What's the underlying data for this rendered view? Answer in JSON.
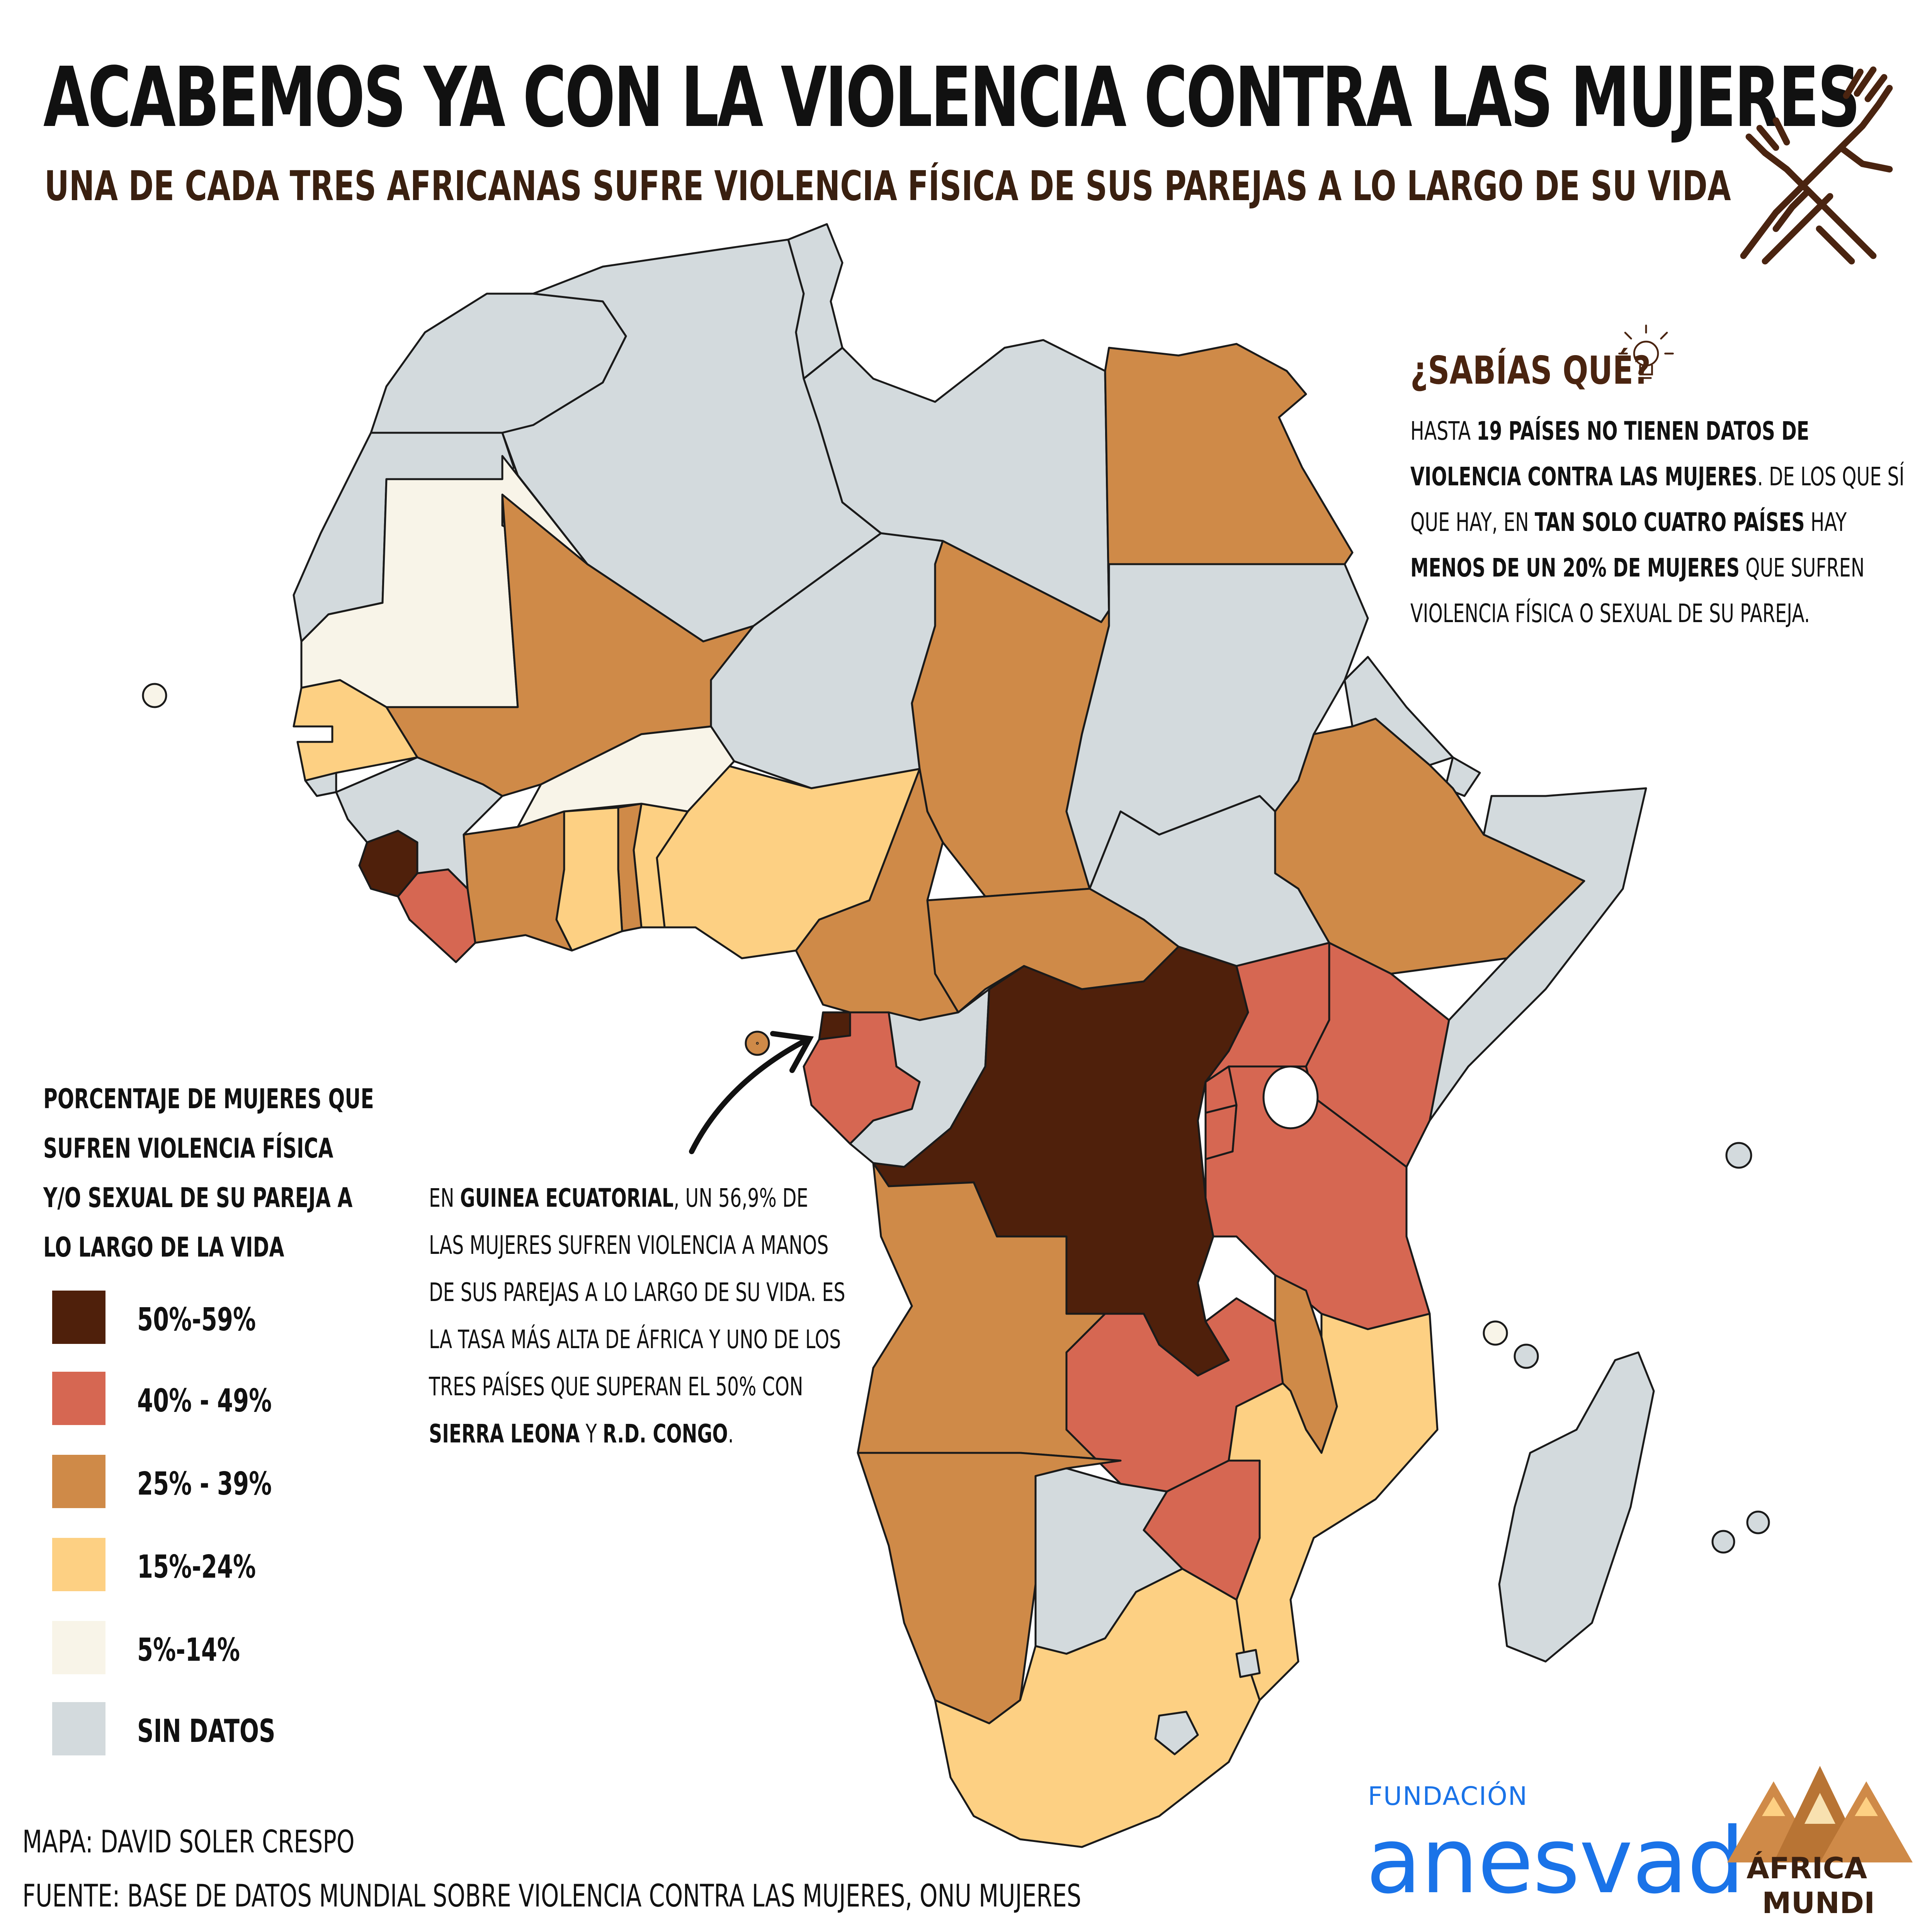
{
  "header": {
    "title": "ACABEMOS YA CON LA VIOLENCIA CONTRA LAS MUJERES",
    "subtitle": "UNA DE CADA TRES AFRICANAS SUFRE VIOLENCIA FÍSICA DE SUS PAREJAS A LO LARGO DE SU VIDA"
  },
  "colors": {
    "b50_59": "#4f200b",
    "b40_49": "#d66752",
    "b25_39": "#cf8a48",
    "b15_24": "#fdd083",
    "b5_14": "#f8f4e8",
    "sin_datos": "#d3dadd",
    "icon_brown": "#4a2410"
  },
  "sabias": {
    "title": "¿SABÍAS QUÉ?",
    "p1": "HASTA ",
    "b1": "19 PAÍSES NO TIENEN DATOS DE VIOLENCIA CONTRA LAS MUJERES",
    "p2": ". DE LOS QUE SÍ QUE HAY, EN ",
    "b2": "TAN SOLO CUATRO PAÍSES",
    "p3": " HAY ",
    "b3": "MENOS DE UN 20% DE MUJERES",
    "p4": " QUE SUFREN VIOLENCIA FÍSICA O SEXUAL DE SU PAREJA."
  },
  "legend": {
    "title": "PORCENTAJE DE MUJERES QUE SUFREN VIOLENCIA FÍSICA Y/O SEXUAL DE SU PAREJA A LO LARGO DE LA VIDA",
    "items": [
      {
        "label": "50%-59%",
        "color": "#4f200b"
      },
      {
        "label": "40% - 49%",
        "color": "#d66752"
      },
      {
        "label": "25% - 39%",
        "color": "#cf8a48"
      },
      {
        "label": "15%-24%",
        "color": "#fdd083"
      },
      {
        "label": "5%-14%",
        "color": "#f8f4e8"
      },
      {
        "label": "SIN DATOS",
        "color": "#d3dadd"
      }
    ]
  },
  "callout": {
    "p1": "EN ",
    "b1": "GUINEA ECUATORIAL",
    "p2": ", UN 56,9% DE LAS MUJERES SUFREN VIOLENCIA A MANOS DE SUS PAREJAS A LO LARGO DE SU VIDA. ES LA TASA MÁS ALTA DE ÁFRICA Y UNO DE LOS TRES PAÍSES QUE SUPERAN EL 50% CON ",
    "b2": "SIERRA LEONA",
    "p3": " Y ",
    "b3": "R.D. CONGO",
    "p4": "."
  },
  "credits": {
    "map": "MAPA: DAVID SOLER CRESPO",
    "source": "FUENTE: BASE DE DATOS MUNDIAL SOBRE VIOLENCIA CONTRA LAS MUJERES, ONU MUJERES"
  },
  "logos": {
    "anesvad_small": "FUNDACIÓN",
    "anesvad_big": "anesvad",
    "africa_mundi_1": "ÁFRICA",
    "africa_mundi_2": "MUNDI"
  }
}
